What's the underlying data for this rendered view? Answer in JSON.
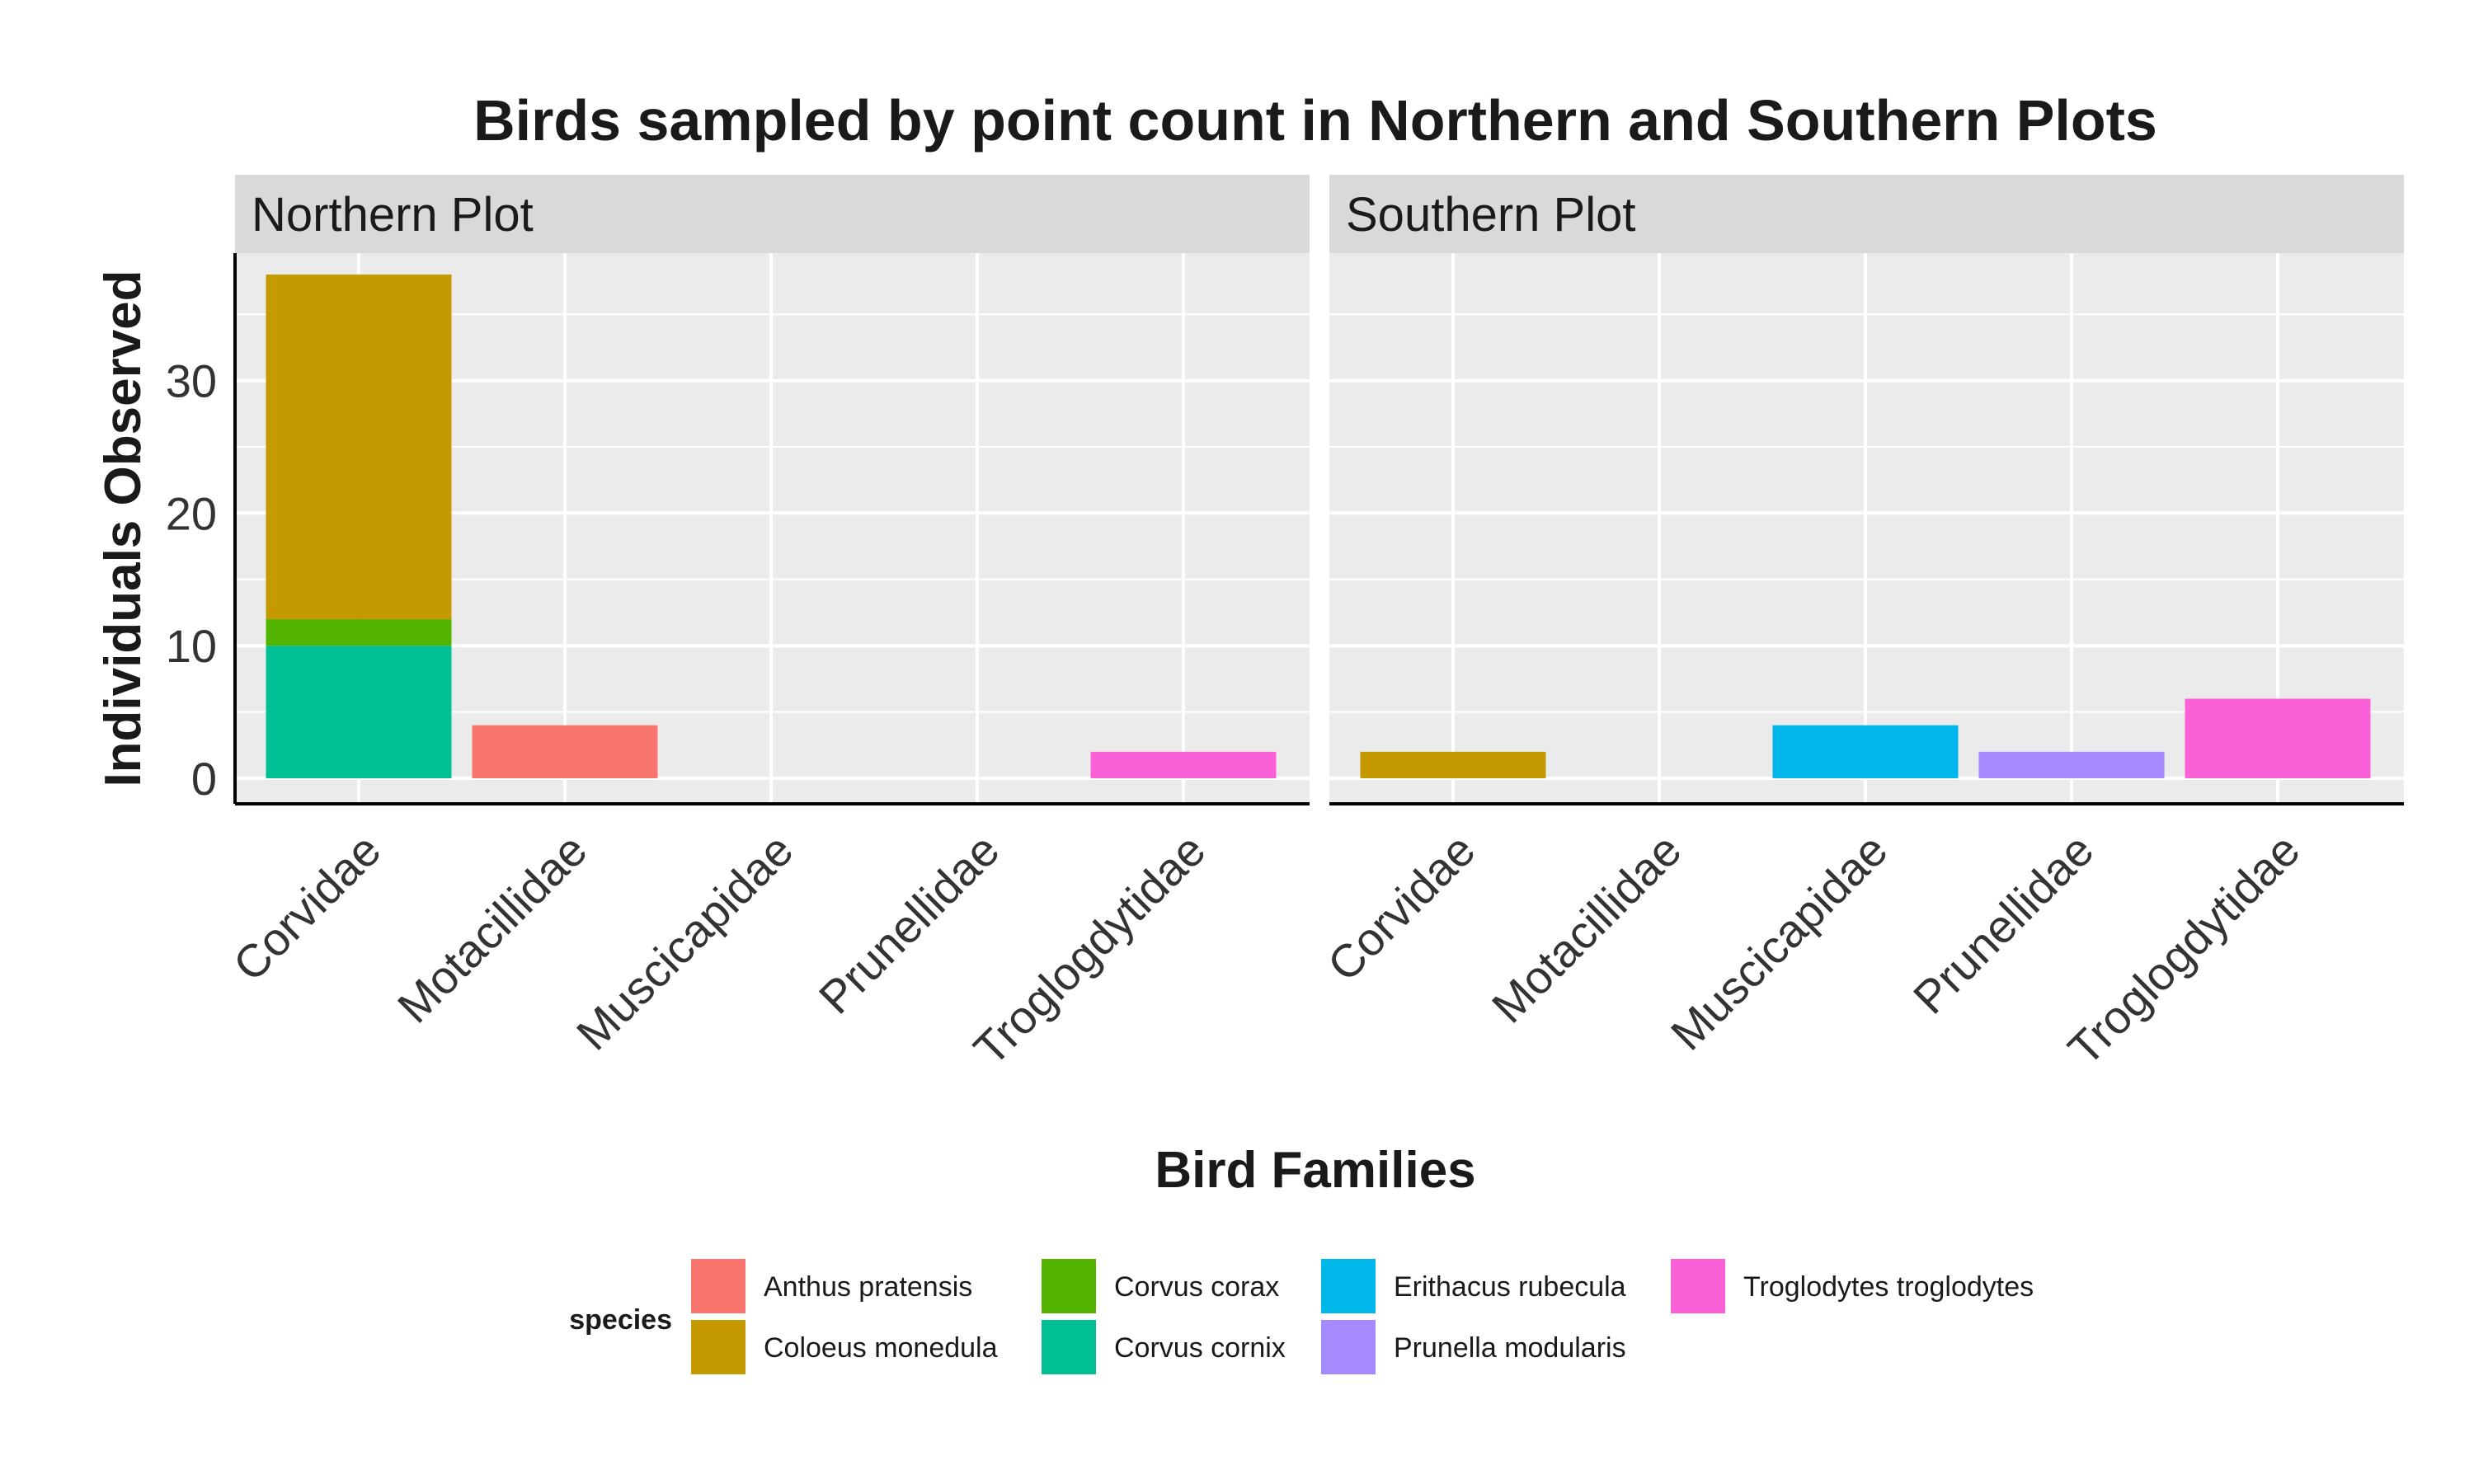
{
  "chart_data": {
    "type": "bar",
    "stacked": true,
    "title": "Birds sampled by point count in Northern and Southern Plots",
    "xlabel": "Bird Families",
    "ylabel": "Individuals Observed",
    "ylim": [
      0,
      40
    ],
    "yticks": [
      0,
      10,
      20,
      30
    ],
    "grid": true,
    "legend_position": "bottom",
    "categories": [
      "Corvidae",
      "Motacillidae",
      "Muscicapidae",
      "Prunellidae",
      "Troglogdytidae"
    ],
    "legend": {
      "title": "species",
      "items": [
        {
          "name": "Anthus pratensis",
          "color": "#F8766D"
        },
        {
          "name": "Coloeus monedula",
          "color": "#C49A00"
        },
        {
          "name": "Corvus corax",
          "color": "#53B400"
        },
        {
          "name": "Corvus cornix",
          "color": "#00C094"
        },
        {
          "name": "Erithacus rubecula",
          "color": "#00B6EB"
        },
        {
          "name": "Prunella modularis",
          "color": "#A58AFF"
        },
        {
          "name": "Troglodytes troglodytes",
          "color": "#FB61D7"
        }
      ]
    },
    "panels": [
      {
        "label": "Northern Plot",
        "bars": [
          {
            "category": "Corvidae",
            "segments": [
              {
                "species": "Corvus cornix",
                "value": 10
              },
              {
                "species": "Corvus corax",
                "value": 2
              },
              {
                "species": "Coloeus monedula",
                "value": 26
              }
            ]
          },
          {
            "category": "Motacillidae",
            "segments": [
              {
                "species": "Anthus pratensis",
                "value": 4
              }
            ]
          },
          {
            "category": "Troglogdytidae",
            "segments": [
              {
                "species": "Troglodytes troglodytes",
                "value": 2
              }
            ]
          }
        ]
      },
      {
        "label": "Southern Plot",
        "bars": [
          {
            "category": "Corvidae",
            "segments": [
              {
                "species": "Coloeus monedula",
                "value": 2
              }
            ]
          },
          {
            "category": "Muscicapidae",
            "segments": [
              {
                "species": "Erithacus rubecula",
                "value": 4
              }
            ]
          },
          {
            "category": "Prunellidae",
            "segments": [
              {
                "species": "Prunella modularis",
                "value": 2
              }
            ]
          },
          {
            "category": "Troglogdytidae",
            "segments": [
              {
                "species": "Troglodytes troglodytes",
                "value": 6
              }
            ]
          }
        ]
      }
    ]
  }
}
